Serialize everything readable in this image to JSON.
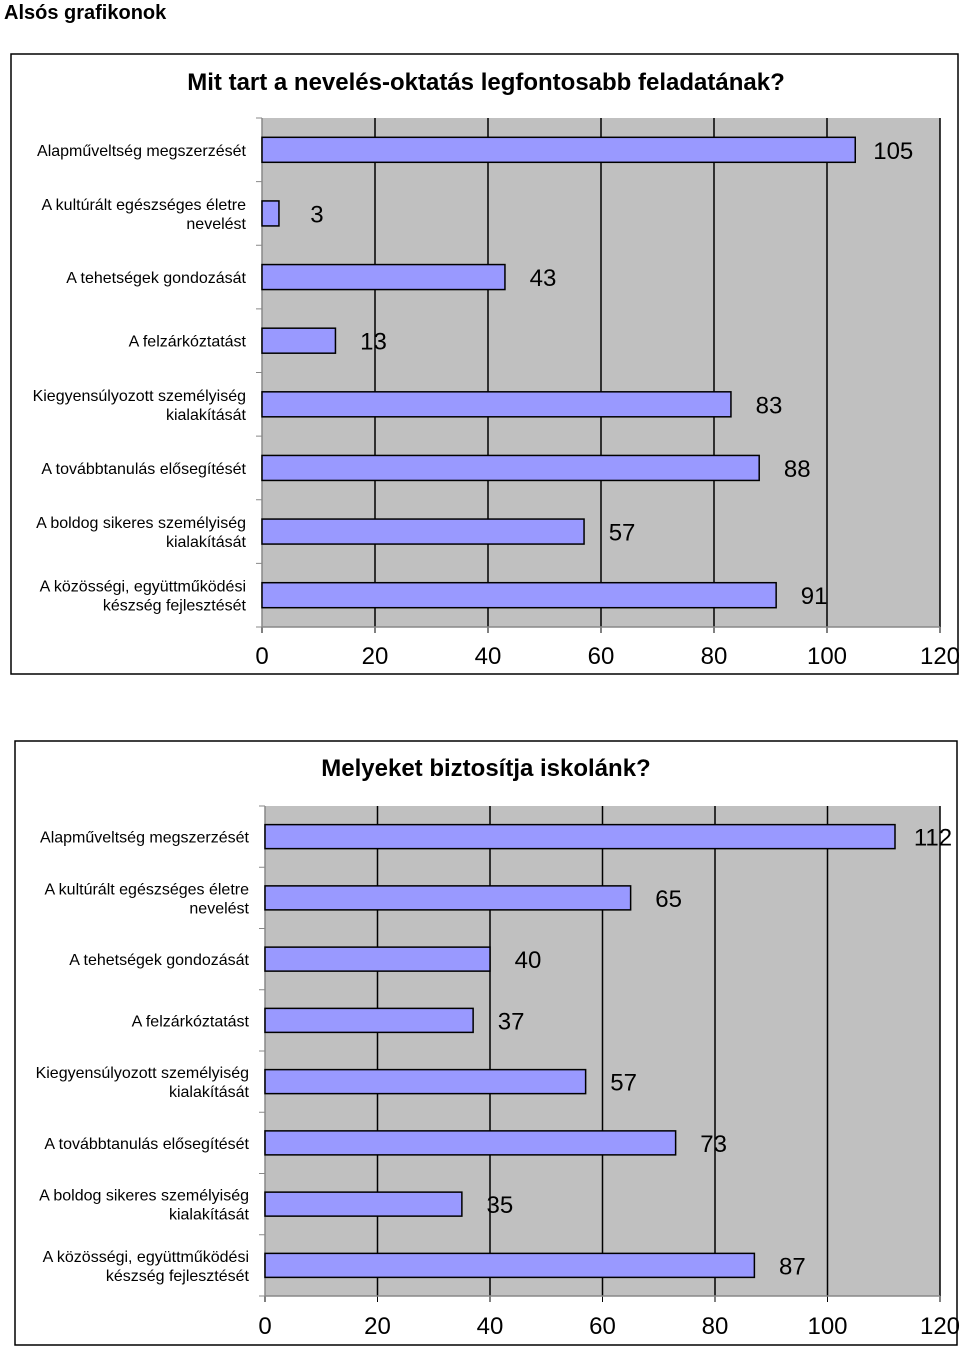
{
  "page": {
    "heading": "Alsós grafikonok"
  },
  "colors": {
    "plot_bg": "#c0c0c0",
    "bar_fill": "#9999ff",
    "bar_stroke": "#000000",
    "grid": "#000000"
  },
  "chart_data": [
    {
      "type": "bar",
      "orientation": "horizontal",
      "title": "Mit tart a nevelés-oktatás legfontosabb feladatának?",
      "categories": [
        [
          "Alapműveltség megszerzését"
        ],
        [
          "A kultúrált egészséges életre",
          "nevelést"
        ],
        [
          "A tehetségek gondozását"
        ],
        [
          "A felzárkóztatást"
        ],
        [
          "Kiegyensúlyozott személyiség",
          "kialakítását"
        ],
        [
          "A továbbtanulás elősegítését"
        ],
        [
          "A boldog sikeres személyiség",
          "kialakítását"
        ],
        [
          "A közösségi, együttműködési",
          "készség fejlesztését"
        ]
      ],
      "values": [
        105,
        3,
        43,
        13,
        83,
        88,
        57,
        91
      ],
      "xlim": [
        0,
        120
      ],
      "ticks": [
        "0",
        "20",
        "40",
        "60",
        "80",
        "100",
        "120"
      ],
      "grid": true,
      "legend": "none"
    },
    {
      "type": "bar",
      "orientation": "horizontal",
      "title": "Melyeket biztosítja iskolánk?",
      "categories": [
        [
          "Alapműveltség megszerzését"
        ],
        [
          "A kultúrált egészséges életre",
          "nevelést"
        ],
        [
          "A tehetségek gondozását"
        ],
        [
          "A felzárkóztatást"
        ],
        [
          "Kiegyensúlyozott személyiség",
          "kialakítását"
        ],
        [
          "A továbbtanulás elősegítését"
        ],
        [
          "A boldog sikeres személyiség",
          "kialakítását"
        ],
        [
          "A közösségi, együttműködési",
          "készség fejlesztését"
        ]
      ],
      "values": [
        112,
        65,
        40,
        37,
        57,
        73,
        35,
        87
      ],
      "xlim": [
        0,
        120
      ],
      "ticks": [
        "0",
        "20",
        "40",
        "60",
        "80",
        "100",
        "120"
      ],
      "grid": true,
      "legend": "none"
    }
  ]
}
